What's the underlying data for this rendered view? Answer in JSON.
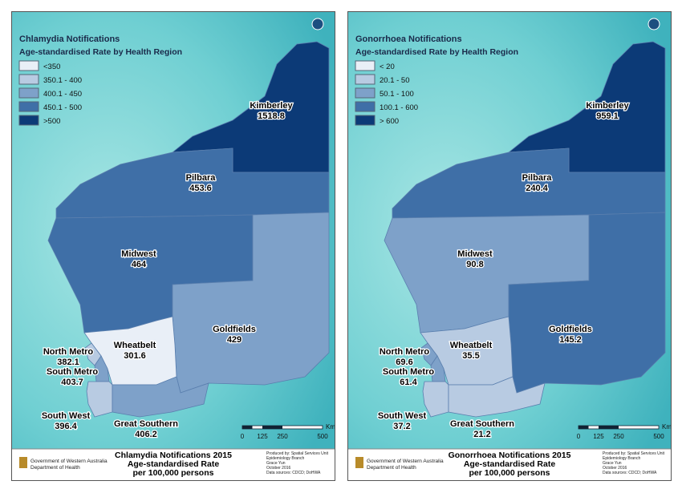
{
  "panels": [
    {
      "title": "Chlamydia Notifications",
      "subtitle": "Age-standardised  Rate by Health Region",
      "legend": [
        {
          "label": "<350",
          "color": "#e9eff7"
        },
        {
          "label": "350.1 - 400",
          "color": "#b8cbe2"
        },
        {
          "label": "400.1 - 450",
          "color": "#7ea1c9"
        },
        {
          "label": "450.1 - 500",
          "color": "#3f6fa7"
        },
        {
          "label": ">500",
          "color": "#0c3a77"
        }
      ],
      "regions": [
        {
          "name": "Kimberley",
          "value": 1518.8,
          "color": "#0c3a77"
        },
        {
          "name": "Pilbara",
          "value": 453.6,
          "color": "#3f6fa7"
        },
        {
          "name": "Midwest",
          "value": 464,
          "color": "#3f6fa7"
        },
        {
          "name": "Goldfields",
          "value": 429,
          "color": "#7ea1c9"
        },
        {
          "name": "Wheatbelt",
          "value": 301.6,
          "color": "#e9eff7"
        },
        {
          "name": "North Metro",
          "value": 382.1,
          "color": "#b8cbe2"
        },
        {
          "name": "South Metro",
          "value": 403.7,
          "color": "#7ea1c9"
        },
        {
          "name": "South West",
          "value": 396.4,
          "color": "#b8cbe2"
        },
        {
          "name": "Great Southern",
          "value": 406.2,
          "color": "#7ea1c9"
        }
      ],
      "scale": [
        "0",
        "125",
        "250",
        "500",
        "Km"
      ],
      "footer": {
        "lines": [
          "Chlamydia Notifications 2015",
          "Age-standardised Rate",
          "per 100,000 persons"
        ],
        "government": [
          "Government of Western Australia",
          "Department of Health"
        ],
        "credits": [
          "Produced by:  Spatial Services Unit",
          "Epidemiology Branch",
          "Grace Yun",
          "October 2016",
          "Data sources:  CDCD; DoHWA"
        ]
      }
    },
    {
      "title": "Gonorrhoea Notifications",
      "subtitle": "Age-standardised  Rate by Health Region",
      "legend": [
        {
          "label": "< 20",
          "color": "#e9eff7"
        },
        {
          "label": "20.1 - 50",
          "color": "#b8cbe2"
        },
        {
          "label": "50.1 - 100",
          "color": "#7ea1c9"
        },
        {
          "label": "100.1 - 600",
          "color": "#3f6fa7"
        },
        {
          "label": "> 600",
          "color": "#0c3a77"
        }
      ],
      "regions": [
        {
          "name": "Kimberley",
          "value": 959.1,
          "color": "#0c3a77"
        },
        {
          "name": "Pilbara",
          "value": 240.4,
          "color": "#3f6fa7"
        },
        {
          "name": "Midwest",
          "value": 90.8,
          "color": "#7ea1c9"
        },
        {
          "name": "Goldfields",
          "value": 145.2,
          "color": "#3f6fa7"
        },
        {
          "name": "Wheatbelt",
          "value": 35.5,
          "color": "#b8cbe2"
        },
        {
          "name": "North Metro",
          "value": 69.6,
          "color": "#7ea1c9"
        },
        {
          "name": "South Metro",
          "value": 61.4,
          "color": "#7ea1c9"
        },
        {
          "name": "South West",
          "value": 37.2,
          "color": "#b8cbe2"
        },
        {
          "name": "Great Southern",
          "value": 21.2,
          "color": "#b8cbe2"
        }
      ],
      "scale": [
        "0",
        "125",
        "250",
        "500",
        "Km"
      ],
      "footer": {
        "lines": [
          "Gonorrhoea Notifications 2015",
          "Age-standardised Rate",
          "per 100,000 persons"
        ],
        "government": [
          "Government of Western Australia",
          "Department of Health"
        ],
        "credits": [
          "Produced by:  Spatial Services Unit",
          "Epidemiology Branch",
          "Grace Yun",
          "October 2016",
          "Data sources:  CDCD; DoHWA"
        ]
      }
    }
  ]
}
